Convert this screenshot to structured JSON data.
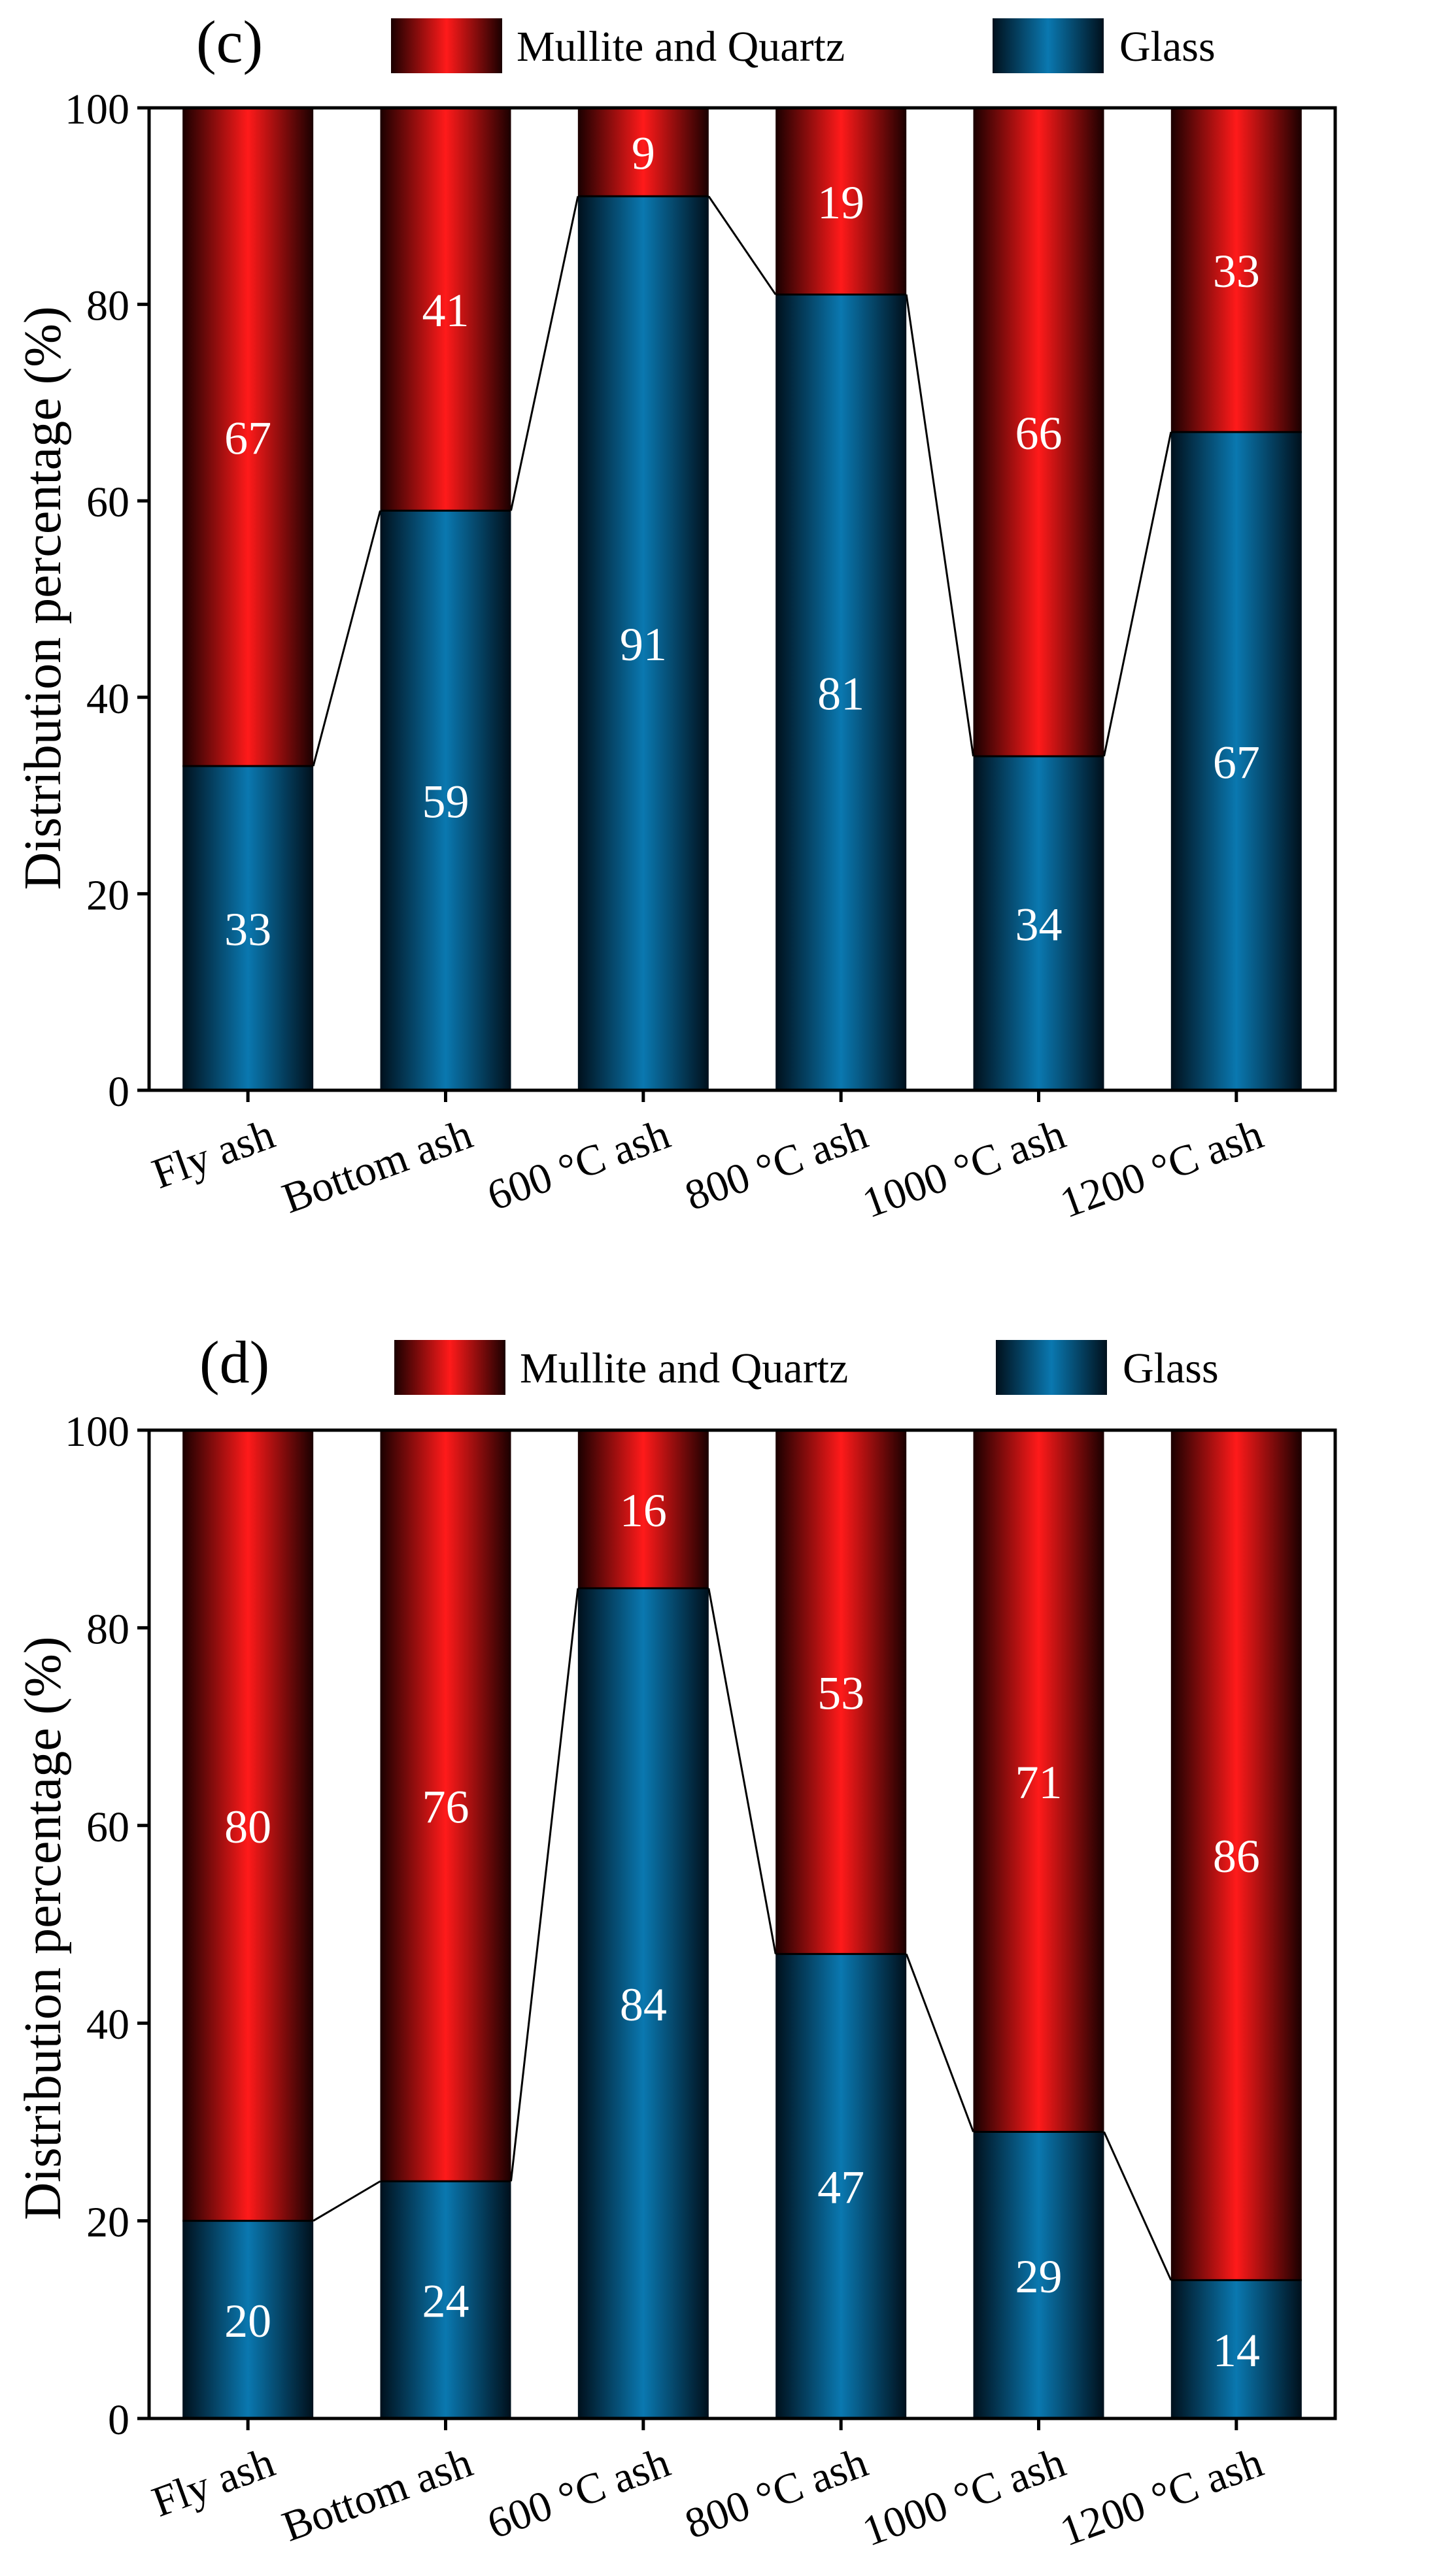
{
  "colors": {
    "mullite_core": "#ff1a1a",
    "mullite_edge": "#1a0000",
    "glass_core": "#0a78b0",
    "glass_edge": "#00101c",
    "axis": "#000000",
    "connector": "#000000",
    "label_text": "#ffffff"
  },
  "chart_data": [
    {
      "type": "bar",
      "stacked": true,
      "panel_label": "(c)",
      "categories": [
        "Fly ash",
        "Bottom ash",
        "600 °C ash",
        "800 °C ash",
        "1000 °C ash",
        "1200 °C ash"
      ],
      "series": [
        {
          "name": "Glass",
          "values": [
            33,
            59,
            91,
            81,
            34,
            67
          ]
        },
        {
          "name": "Mullite and Quartz",
          "values": [
            67,
            41,
            9,
            19,
            66,
            33
          ]
        }
      ],
      "ylabel": "Distribution percentage (%)",
      "xlabel": "",
      "ylim": [
        0,
        100
      ],
      "yticks": [
        "0",
        "20",
        "40",
        "60",
        "80",
        "100"
      ],
      "legend": [
        "Mullite and Quartz",
        "Glass"
      ],
      "legend_position": "top"
    },
    {
      "type": "bar",
      "stacked": true,
      "panel_label": "(d)",
      "categories": [
        "Fly ash",
        "Bottom ash",
        "600 °C ash",
        "800 °C ash",
        "1000 °C ash",
        "1200 °C ash"
      ],
      "series": [
        {
          "name": "Glass",
          "values": [
            20,
            24,
            84,
            47,
            29,
            14
          ]
        },
        {
          "name": "Mullite and Quartz",
          "values": [
            80,
            76,
            16,
            53,
            71,
            86
          ]
        }
      ],
      "ylabel": "Distribution percentage (%)",
      "xlabel": "",
      "ylim": [
        0,
        100
      ],
      "yticks": [
        "0",
        "20",
        "40",
        "60",
        "80",
        "100"
      ],
      "legend": [
        "Mullite and Quartz",
        "Glass"
      ],
      "legend_position": "top"
    }
  ]
}
